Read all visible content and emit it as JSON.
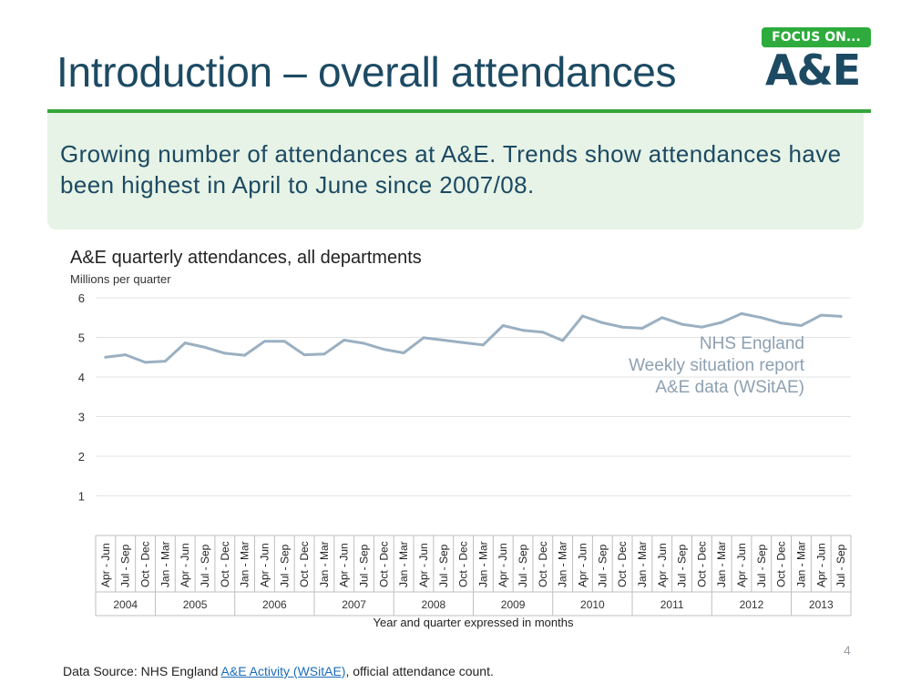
{
  "slide": {
    "title": "Introduction – overall attendances",
    "logo_badge": "FOCUS ON...",
    "logo_word": "A&E",
    "callout": "Growing number of attendances at A&E. Trends show attendances have been highest in April to June since 2007/08.",
    "page_number": "4"
  },
  "source": {
    "prefix": "Data Source:  NHS England ",
    "link_text": "A&E Activity (WSitAE)",
    "suffix": ", official attendance count."
  },
  "colors": {
    "line": "#9ab0c2",
    "title": "#1d4a63",
    "accent_green": "#36a53c",
    "callout_bg": "#e6f3e6",
    "grid": "#e3e3e3"
  },
  "chart_data": {
    "type": "line",
    "title": "A&E quarterly attendances, all departments",
    "ylabel": "Millions per quarter",
    "xlabel": "Year and quarter expressed in months",
    "ylim": [
      0,
      6
    ],
    "yticks": [
      1,
      2,
      3,
      4,
      5,
      6
    ],
    "grid": true,
    "annotation": [
      "NHS England",
      "Weekly situation report",
      "A&E data (WSitAE)"
    ],
    "years": [
      {
        "label": "2004",
        "count": 3
      },
      {
        "label": "2005",
        "count": 4
      },
      {
        "label": "2006",
        "count": 4
      },
      {
        "label": "2007",
        "count": 4
      },
      {
        "label": "2008",
        "count": 4
      },
      {
        "label": "2009",
        "count": 4
      },
      {
        "label": "2010",
        "count": 4
      },
      {
        "label": "2011",
        "count": 4
      },
      {
        "label": "2012",
        "count": 4
      },
      {
        "label": "2013",
        "count": 3
      }
    ],
    "categories": [
      "Apr - Jun",
      "Jul - Sep",
      "Oct - Dec",
      "Jan - Mar",
      "Apr - Jun",
      "Jul - Sep",
      "Oct - Dec",
      "Jan - Mar",
      "Apr - Jun",
      "Jul - Sep",
      "Oct - Dec",
      "Jan - Mar",
      "Apr - Jun",
      "Jul - Sep",
      "Oct - Dec",
      "Jan - Mar",
      "Apr - Jun",
      "Jul - Sep",
      "Oct - Dec",
      "Jan - Mar",
      "Apr - Jun",
      "Jul - Sep",
      "Oct - Dec",
      "Jan - Mar",
      "Apr - Jun",
      "Jul - Sep",
      "Oct - Dec",
      "Jan - Mar",
      "Apr - Jun",
      "Jul - Sep",
      "Oct - Dec",
      "Jan - Mar",
      "Apr - Jun",
      "Jul - Sep",
      "Oct - Dec",
      "Jan - Mar",
      "Apr - Jun",
      "Jul - Sep"
    ],
    "series": [
      {
        "values": [
          4.5,
          4.56,
          4.37,
          4.4,
          4.86,
          4.75,
          4.6,
          4.55,
          4.9,
          4.9,
          4.56,
          4.58,
          4.93,
          4.85,
          4.7,
          4.61,
          4.99,
          4.93,
          4.87,
          4.81,
          5.3,
          5.18,
          5.13,
          4.92,
          5.54,
          5.37,
          5.26,
          5.23,
          5.5,
          5.33,
          5.26,
          5.38,
          5.6,
          5.5,
          5.36,
          5.3,
          5.56,
          5.53
        ]
      }
    ]
  }
}
